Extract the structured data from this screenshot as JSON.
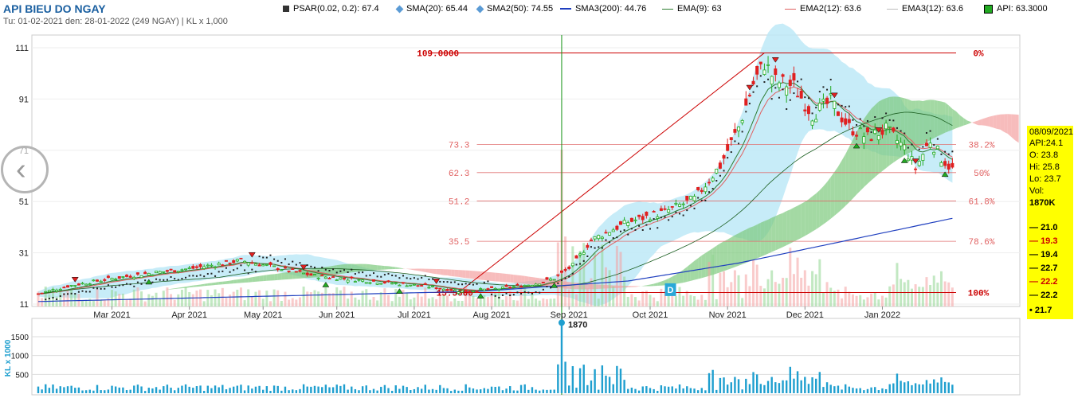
{
  "header": {
    "title": "API BIEU DO NGAY",
    "subtitle": "Tu: 01-02-2021 den: 28-01-2022 (249 NGAY) | KL x 1,000"
  },
  "legend": [
    {
      "label": "PSAR(0.02, 0.2): 67.4",
      "color": "#333333",
      "kind": "square"
    },
    {
      "label": "SMA(20): 65.44",
      "color": "#5b9bd5",
      "kind": "diamond"
    },
    {
      "label": "SMA2(50): 74.55",
      "color": "#5b9bd5",
      "kind": "diamond"
    },
    {
      "label": "SMA3(200): 44.76",
      "color": "#1f3fbf",
      "kind": "line"
    },
    {
      "label": "EMA(9): 63",
      "color": "#2e7d32",
      "kind": "line"
    },
    {
      "label": "EMA2(12): 63.6",
      "color": "#e06060",
      "kind": "line"
    },
    {
      "label": "EMA3(12): 63.6",
      "color": "#bbbbbb",
      "kind": "line"
    },
    {
      "label": "API: 63.3000",
      "color": "#22aa22",
      "kind": "square"
    }
  ],
  "colors": {
    "up": "#22aa22",
    "down": "#e02020",
    "cloud_green": "#7cc97c",
    "cloud_red": "#f4a0a0",
    "bollinger": "#bde9f7",
    "fib_line": "#cc0000",
    "sma200": "#1f3fbf",
    "volume": "#1f9fcf"
  },
  "chart_data": {
    "type": "candlestick",
    "price_axis": {
      "ticks": [
        111,
        91,
        71,
        51,
        31,
        11
      ],
      "range": [
        11,
        111
      ]
    },
    "x_ticks": [
      "Mar 2021",
      "Apr 2021",
      "May 2021",
      "Jun 2021",
      "Jul 2021",
      "Aug 2021",
      "Sep 2021",
      "Oct 2021",
      "Nov 2021",
      "Dec 2021",
      "Jan 2022"
    ],
    "fib_labels": {
      "high": "109.0000",
      "low": "15.5000",
      "levels": [
        {
          "price": 73.3,
          "price_label": "73.3",
          "pct": "38.2%"
        },
        {
          "price": 62.3,
          "price_label": "62.3",
          "pct": "50%"
        },
        {
          "price": 51.2,
          "price_label": "51.2",
          "pct": "61.8%"
        },
        {
          "price": 35.5,
          "price_label": "35.5",
          "pct": "78.6%"
        }
      ],
      "top_pct": "0%",
      "bottom_pct": "100%"
    },
    "marker_label": "D",
    "volume_axis": {
      "label": "KL x 1000",
      "ticks": [
        "1500",
        "1000",
        "500"
      ],
      "ticks_values": [
        1500,
        1000,
        500
      ],
      "range": [
        0,
        1900
      ]
    },
    "volume_highlight": {
      "value": 1870,
      "label": "1870"
    },
    "anchor_points": [
      {
        "t": 0,
        "p": 15
      },
      {
        "t": 8,
        "p": 18
      },
      {
        "t": 20,
        "p": 21
      },
      {
        "t": 30,
        "p": 23
      },
      {
        "t": 42,
        "p": 25
      },
      {
        "t": 55,
        "p": 28
      },
      {
        "t": 62,
        "p": 26
      },
      {
        "t": 75,
        "p": 22
      },
      {
        "t": 90,
        "p": 20
      },
      {
        "t": 105,
        "p": 18
      },
      {
        "t": 115,
        "p": 16
      },
      {
        "t": 125,
        "p": 17
      },
      {
        "t": 135,
        "p": 19
      },
      {
        "t": 140,
        "p": 21
      },
      {
        "t": 145,
        "p": 26
      },
      {
        "t": 150,
        "p": 36
      },
      {
        "t": 160,
        "p": 43
      },
      {
        "t": 170,
        "p": 47
      },
      {
        "t": 178,
        "p": 52
      },
      {
        "t": 185,
        "p": 65
      },
      {
        "t": 190,
        "p": 80
      },
      {
        "t": 194,
        "p": 97
      },
      {
        "t": 197,
        "p": 105
      },
      {
        "t": 200,
        "p": 98
      },
      {
        "t": 205,
        "p": 96
      },
      {
        "t": 210,
        "p": 85
      },
      {
        "t": 215,
        "p": 90
      },
      {
        "t": 220,
        "p": 80
      },
      {
        "t": 225,
        "p": 76
      },
      {
        "t": 230,
        "p": 79
      },
      {
        "t": 235,
        "p": 72
      },
      {
        "t": 238,
        "p": 64
      },
      {
        "t": 242,
        "p": 75
      },
      {
        "t": 245,
        "p": 68
      },
      {
        "t": 249,
        "p": 62
      }
    ],
    "sma200_points": [
      {
        "t": 0,
        "p": 12
      },
      {
        "t": 60,
        "p": 14
      },
      {
        "t": 120,
        "p": 16
      },
      {
        "t": 160,
        "p": 20
      },
      {
        "t": 190,
        "p": 27
      },
      {
        "t": 220,
        "p": 36
      },
      {
        "t": 249,
        "p": 44.76
      }
    ],
    "panel": {
      "date": "08/09/2021",
      "api": "API:24.1",
      "o": "O: 23.8",
      "hi": "Hi: 25.8",
      "lo": "Lo: 23.7",
      "vol_label": "Vol:",
      "vol": "1870K",
      "rows": [
        "21.0",
        "19.3",
        "19.4",
        "22.7",
        "22.2",
        "22.2",
        "21.7"
      ]
    }
  }
}
